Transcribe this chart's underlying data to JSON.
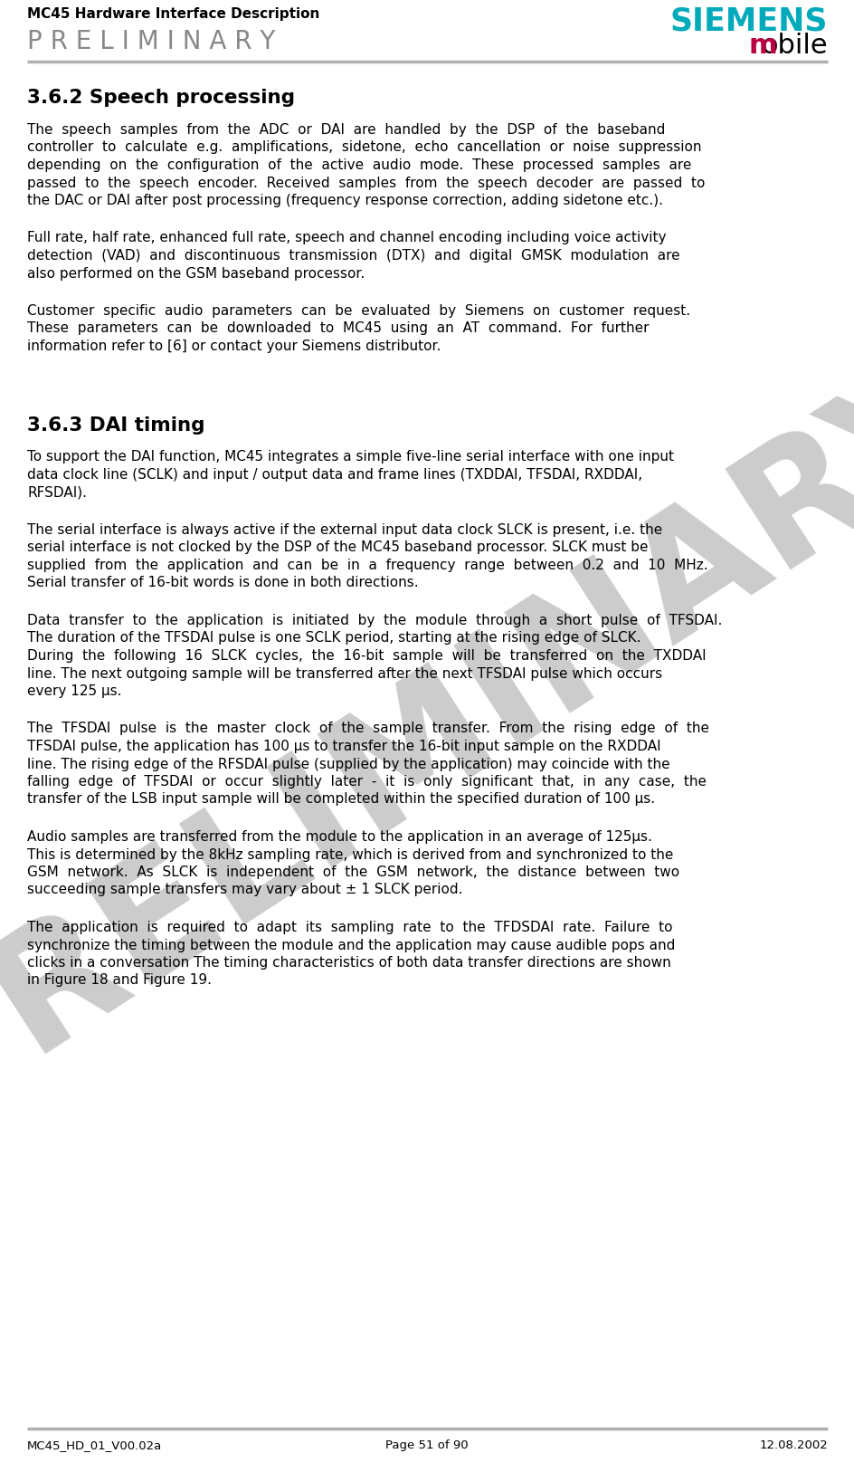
{
  "header_left_line1": "MC45 Hardware Interface Description",
  "header_left_line2": "P R E L I M I N A R Y",
  "header_right_line1": "SIEMENS",
  "header_right_line2_m": "m",
  "header_right_line2_rest": "obile",
  "siemens_color": "#00AABB",
  "mobile_m_color": "#BB0044",
  "mobile_rest_color": "#000000",
  "footer_left": "MC45_HD_01_V00.02a",
  "footer_center": "Page 51 of 90",
  "footer_right": "12.08.2002",
  "header_line_color": "#B0B0B0",
  "footer_line_color": "#B0B0B0",
  "watermark_text": "PRELIMINARY",
  "watermark_color": "#CCCCCC",
  "section1_title": "3.6.2 Speech processing",
  "section1_para1_lines": [
    "The  speech  samples  from  the  ADC  or  DAI  are  handled  by  the  DSP  of  the  baseband",
    "controller  to  calculate  e.g.  amplifications,  sidetone,  echo  cancellation  or  noise  suppression",
    "depending  on  the  configuration  of  the  active  audio  mode.  These  processed  samples  are",
    "passed  to  the  speech  encoder.  Received  samples  from  the  speech  decoder  are  passed  to",
    "the DAC or DAI after post processing (frequency response correction, adding sidetone etc.)."
  ],
  "section1_para2_lines": [
    "Full rate, half rate, enhanced full rate, speech and channel encoding including voice activity",
    "detection  (VAD)  and  discontinuous  transmission  (DTX)  and  digital  GMSK  modulation  are",
    "also performed on the GSM baseband processor."
  ],
  "section1_para3_lines": [
    "Customer  specific  audio  parameters  can  be  evaluated  by  Siemens  on  customer  request.",
    "These  parameters  can  be  downloaded  to  MC45  using  an  AT  command.  For  further",
    "information refer to [6] or contact your Siemens distributor."
  ],
  "section2_title": "3.6.3 DAI timing",
  "section2_para1_lines": [
    "To support the DAI function, MC45 integrates a simple five-line serial interface with one input",
    "data clock line (SCLK) and input / output data and frame lines (TXDDAI, TFSDAI, RXDDAI,",
    "RFSDAI)."
  ],
  "section2_para2_lines": [
    "The serial interface is always active if the external input data clock SLCK is present, i.e. the",
    "serial interface is not clocked by the DSP of the MC45 baseband processor. SLCK must be",
    "supplied  from  the  application  and  can  be  in  a  frequency  range  between  0.2  and  10  MHz.",
    "Serial transfer of 16-bit words is done in both directions."
  ],
  "section2_para3_lines": [
    "Data  transfer  to  the  application  is  initiated  by  the  module  through  a  short  pulse  of  TFSDAI.",
    "The duration of the TFSDAI pulse is one SCLK period, starting at the rising edge of SLCK.",
    "During  the  following  16  SLCK  cycles,  the  16-bit  sample  will  be  transferred  on  the  TXDDAI",
    "line. The next outgoing sample will be transferred after the next TFSDAI pulse which occurs",
    "every 125 µs."
  ],
  "section2_para4_lines": [
    "The  TFSDAI  pulse  is  the  master  clock  of  the  sample  transfer.  From  the  rising  edge  of  the",
    "TFSDAI pulse, the application has 100 µs to transfer the 16-bit input sample on the RXDDAI",
    "line. The rising edge of the RFSDAI pulse (supplied by the application) may coincide with the",
    "falling  edge  of  TFSDAI  or  occur  slightly  later  -  it  is  only  significant  that,  in  any  case,  the",
    "transfer of the LSB input sample will be completed within the specified duration of 100 µs."
  ],
  "section2_para5_lines": [
    "Audio samples are transferred from the module to the application in an average of 125µs.",
    "This is determined by the 8kHz sampling rate, which is derived from and synchronized to the",
    "GSM  network.  As  SLCK  is  independent  of  the  GSM  network,  the  distance  between  two",
    "succeeding sample transfers may vary about ± 1 SLCK period."
  ],
  "section2_para6_lines": [
    "The  application  is  required  to  adapt  its  sampling  rate  to  the  TFDSDAI  rate.  Failure  to",
    "synchronize the timing between the module and the application may cause audible pops and",
    "clicks in a conversation The timing characteristics of both data transfer directions are shown",
    "in Figure 18 and Figure 19."
  ]
}
